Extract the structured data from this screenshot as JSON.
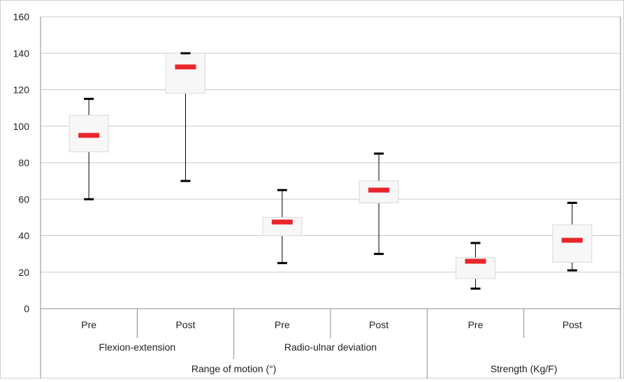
{
  "chart_data": {
    "type": "box",
    "ylim": [
      0,
      160
    ],
    "yticks": [
      0,
      20,
      40,
      60,
      80,
      100,
      120,
      140,
      160
    ],
    "grid": true,
    "categories": [
      {
        "label": "Pre",
        "group": "Flexion-extension",
        "supergroup": "Range of motion (°)",
        "min": 60,
        "q1": 86,
        "median": 95,
        "q3": 106,
        "max": 115
      },
      {
        "label": "Post",
        "group": "Flexion-extension",
        "supergroup": "Range of motion (°)",
        "min": 70,
        "q1": 118,
        "median": 132.5,
        "q3": 140,
        "max": 140
      },
      {
        "label": "Pre",
        "group": "Radio-ulnar deviation",
        "supergroup": "Range of motion (°)",
        "min": 25,
        "q1": 40,
        "median": 47.5,
        "q3": 50,
        "max": 65
      },
      {
        "label": "Post",
        "group": "Radio-ulnar deviation",
        "supergroup": "Range of motion (°)",
        "min": 30,
        "q1": 58,
        "median": 65,
        "q3": 70,
        "max": 85
      },
      {
        "label": "Pre",
        "group": "",
        "supergroup": "Strength (Kg/F)",
        "min": 11,
        "q1": 16.5,
        "median": 26,
        "q3": 28,
        "max": 36
      },
      {
        "label": "Post",
        "group": "",
        "supergroup": "Strength (Kg/F)",
        "min": 21,
        "q1": 25.5,
        "median": 37.5,
        "q3": 46,
        "max": 58
      }
    ],
    "groups": [
      {
        "label": "Flexion-extension",
        "span": [
          0,
          1
        ]
      },
      {
        "label": "Radio-ulnar deviation",
        "span": [
          2,
          3
        ]
      }
    ],
    "supergroups": [
      {
        "label": "Range of motion (°)",
        "span": [
          0,
          3
        ]
      },
      {
        "label": "Strength (Kg/F)",
        "span": [
          4,
          5
        ]
      }
    ],
    "colors": {
      "median": "#e8262b",
      "box_fill": "#f7f7f7",
      "box_stroke": "#d9d9d9",
      "grid": "#c8c8c8",
      "whisker": "#000000",
      "axis": "#8c8c8c"
    }
  }
}
